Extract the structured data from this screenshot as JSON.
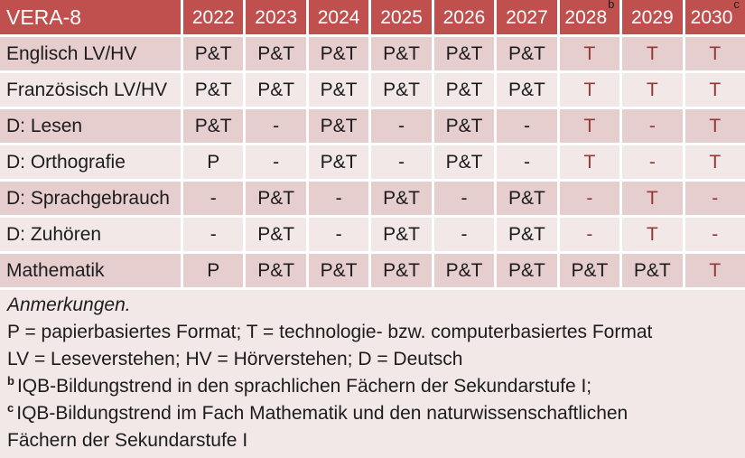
{
  "colors": {
    "header_bg": "#C0504D",
    "band_dark": "#E7CECE",
    "band_light": "#F3E8E8",
    "text_black": "#1C1C1C",
    "text_red": "#953734",
    "header_text": "#FFFFFF"
  },
  "table": {
    "title": "VERA-8",
    "columns": [
      {
        "year": "2022",
        "sup": ""
      },
      {
        "year": "2023",
        "sup": ""
      },
      {
        "year": "2024",
        "sup": ""
      },
      {
        "year": "2025",
        "sup": ""
      },
      {
        "year": "2026",
        "sup": ""
      },
      {
        "year": "2027",
        "sup": ""
      },
      {
        "year": "2028",
        "sup": "b"
      },
      {
        "year": "2029",
        "sup": ""
      },
      {
        "year": "2030",
        "sup": "c"
      }
    ],
    "rows": [
      {
        "label": "Englisch LV/HV",
        "cells": [
          {
            "v": "P&T"
          },
          {
            "v": "P&T"
          },
          {
            "v": "P&T"
          },
          {
            "v": "P&T"
          },
          {
            "v": "P&T"
          },
          {
            "v": "P&T"
          },
          {
            "v": "T",
            "red": true
          },
          {
            "v": "T",
            "red": true
          },
          {
            "v": "T",
            "red": true
          }
        ]
      },
      {
        "label": "Französisch LV/HV",
        "cells": [
          {
            "v": "P&T"
          },
          {
            "v": "P&T"
          },
          {
            "v": "P&T"
          },
          {
            "v": "P&T"
          },
          {
            "v": "P&T"
          },
          {
            "v": "P&T"
          },
          {
            "v": "T",
            "red": true
          },
          {
            "v": "T",
            "red": true
          },
          {
            "v": "T",
            "red": true
          }
        ]
      },
      {
        "label": "D: Lesen",
        "cells": [
          {
            "v": "P&T"
          },
          {
            "v": "-"
          },
          {
            "v": "P&T"
          },
          {
            "v": "-"
          },
          {
            "v": "P&T"
          },
          {
            "v": "-"
          },
          {
            "v": "T",
            "red": true
          },
          {
            "v": "-",
            "red": true
          },
          {
            "v": "T",
            "red": true
          }
        ]
      },
      {
        "label": "D: Orthografie",
        "cells": [
          {
            "v": "P"
          },
          {
            "v": "-"
          },
          {
            "v": "P&T"
          },
          {
            "v": "-"
          },
          {
            "v": "P&T"
          },
          {
            "v": "-"
          },
          {
            "v": "T",
            "red": true
          },
          {
            "v": "-",
            "red": true
          },
          {
            "v": "T",
            "red": true
          }
        ]
      },
      {
        "label": "D: Sprachgebrauch",
        "cells": [
          {
            "v": "-"
          },
          {
            "v": "P&T"
          },
          {
            "v": "-"
          },
          {
            "v": "P&T"
          },
          {
            "v": "-"
          },
          {
            "v": "P&T"
          },
          {
            "v": "-",
            "red": true
          },
          {
            "v": "T",
            "red": true
          },
          {
            "v": "-",
            "red": true
          }
        ]
      },
      {
        "label": "D: Zuhören",
        "cells": [
          {
            "v": "-"
          },
          {
            "v": "P&T"
          },
          {
            "v": "-"
          },
          {
            "v": "P&T"
          },
          {
            "v": "-"
          },
          {
            "v": "P&T"
          },
          {
            "v": "-",
            "red": true
          },
          {
            "v": "T",
            "red": true
          },
          {
            "v": "-",
            "red": true
          }
        ]
      },
      {
        "label": "Mathematik",
        "cells": [
          {
            "v": "P"
          },
          {
            "v": "P&T"
          },
          {
            "v": "P&T"
          },
          {
            "v": "P&T"
          },
          {
            "v": "P&T"
          },
          {
            "v": "P&T"
          },
          {
            "v": "P&T"
          },
          {
            "v": "P&T"
          },
          {
            "v": "T",
            "red": true
          }
        ]
      }
    ]
  },
  "notes": {
    "lines": [
      {
        "sup": "",
        "text": "Anmerkungen.",
        "italic": true
      },
      {
        "sup": "",
        "text": "P = papierbasiertes Format; T = technologie- bzw. computerbasiertes Format"
      },
      {
        "sup": "",
        "text": "LV = Leseverstehen; HV = Hörverstehen; D = Deutsch"
      },
      {
        "sup": "b",
        "text": "IQB-Bildungstrend in den sprachlichen Fächern der Sekundarstufe I;"
      },
      {
        "sup": "c",
        "text": "IQB-Bildungstrend im Fach Mathematik und den naturwissenschaftlichen Fächern der Sekundarstufe I"
      }
    ]
  }
}
